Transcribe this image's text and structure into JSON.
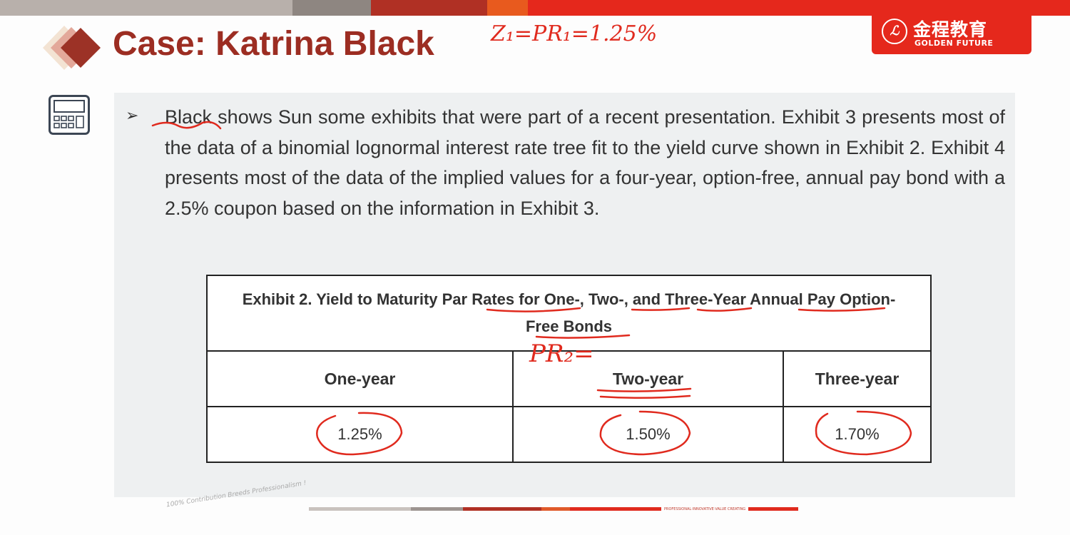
{
  "header": {
    "title": "Case: Katrina Black",
    "bar_colors": [
      "#b8b0ab",
      "#8e8681",
      "#b03024",
      "#e85a1e",
      "#e5281c"
    ]
  },
  "logo": {
    "cn": "金程教育",
    "en": "GOLDEN FUTURE",
    "seal": "ℒ",
    "color": "#e5281c"
  },
  "annotations": {
    "title_note": "Z₁=PR₁=1.25%",
    "table_note": "PR₂="
  },
  "body": {
    "icon": "calculator-icon",
    "bullet": "➢",
    "paragraph": "Black shows Sun some exhibits that were part of a recent presentation. Exhibit 3 presents most of the data of a binomial lognormal interest rate tree fit to the yield curve shown in Exhibit 2. Exhibit 4 presents most of the data of the implied values for a four-year, option-free, annual pay bond with a 2.5% coupon based on the information in Exhibit 3."
  },
  "table": {
    "caption": "Exhibit 2. Yield to Maturity Par Rates for One-, Two-, and Three-Year Annual Pay Option-Free Bonds",
    "headers": [
      "One-year",
      "Two-year",
      "Three-year"
    ],
    "values": [
      "1.25%",
      "1.50%",
      "1.70%"
    ]
  },
  "footer": {
    "tagline": "100% Contribution Breeds Professionalism !",
    "motto": "PROFESSIONAL·INNOVATIVE·VALUE CREATING"
  }
}
